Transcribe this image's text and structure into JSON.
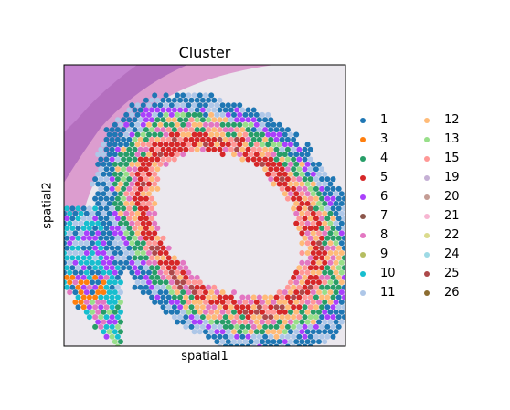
{
  "chart_data": {
    "type": "scatter",
    "title": "Cluster",
    "xlabel": "spatial1",
    "ylabel": "spatial2",
    "grid": false,
    "legend_position": "right",
    "background": "H&E tissue image",
    "legend_columns": [
      [
        {
          "label": "1",
          "color": "#1f77b4"
        },
        {
          "label": "3",
          "color": "#ff7f0e"
        },
        {
          "label": "4",
          "color": "#279e68"
        },
        {
          "label": "5",
          "color": "#d62728"
        },
        {
          "label": "6",
          "color": "#aa40fc"
        },
        {
          "label": "7",
          "color": "#8c564b"
        },
        {
          "label": "8",
          "color": "#e377c2"
        },
        {
          "label": "9",
          "color": "#b5bd61"
        },
        {
          "label": "10",
          "color": "#17becf"
        },
        {
          "label": "11",
          "color": "#aec7e8"
        }
      ],
      [
        {
          "label": "12",
          "color": "#ffbb78"
        },
        {
          "label": "13",
          "color": "#98df8a"
        },
        {
          "label": "15",
          "color": "#ff9896"
        },
        {
          "label": "19",
          "color": "#c5b0d5"
        },
        {
          "label": "20",
          "color": "#c49c94"
        },
        {
          "label": "21",
          "color": "#f7b6d2"
        },
        {
          "label": "22",
          "color": "#dbdb8d"
        },
        {
          "label": "24",
          "color": "#9edae5"
        },
        {
          "label": "25",
          "color": "#ad494a"
        },
        {
          "label": "26",
          "color": "#8c6d31"
        }
      ]
    ]
  }
}
